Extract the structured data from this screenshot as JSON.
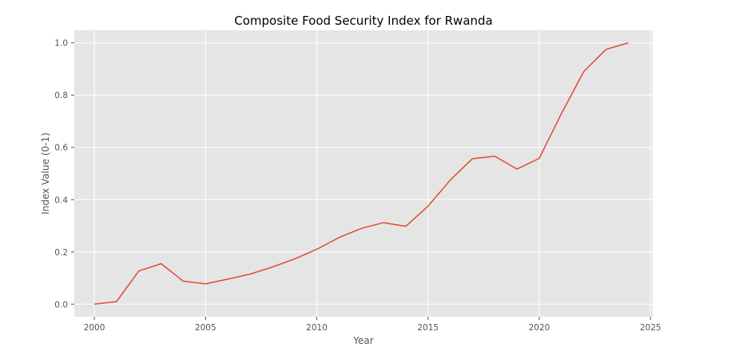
{
  "chart_data": {
    "type": "line",
    "title": "Composite Food Security Index for Rwanda",
    "xlabel": "Year",
    "ylabel": "Index Value (0-1)",
    "xlim": [
      1999.1,
      2025.1
    ],
    "ylim": [
      -0.048,
      1.048
    ],
    "xticks": [
      2000,
      2005,
      2010,
      2015,
      2020,
      2025
    ],
    "yticks": [
      0.0,
      0.2,
      0.4,
      0.6,
      0.8,
      1.0
    ],
    "ytick_labels": [
      "0.0",
      "0.2",
      "0.4",
      "0.6",
      "0.8",
      "1.0"
    ],
    "grid": true,
    "background": "#e5e5e5",
    "series": [
      {
        "color": "#e24a33",
        "x": [
          2000,
          2001,
          2002,
          2003,
          2004,
          2005,
          2006,
          2007,
          2008,
          2009,
          2010,
          2011,
          2012,
          2013,
          2014,
          2015,
          2016,
          2017,
          2018,
          2019,
          2020,
          2021,
          2022,
          2023,
          2024
        ],
        "y": [
          0.0,
          0.01,
          0.127,
          0.155,
          0.088,
          0.078,
          0.096,
          0.115,
          0.142,
          0.173,
          0.21,
          0.255,
          0.29,
          0.312,
          0.298,
          0.375,
          0.475,
          0.557,
          0.566,
          0.517,
          0.558,
          0.73,
          0.89,
          0.975,
          1.0
        ]
      }
    ]
  }
}
